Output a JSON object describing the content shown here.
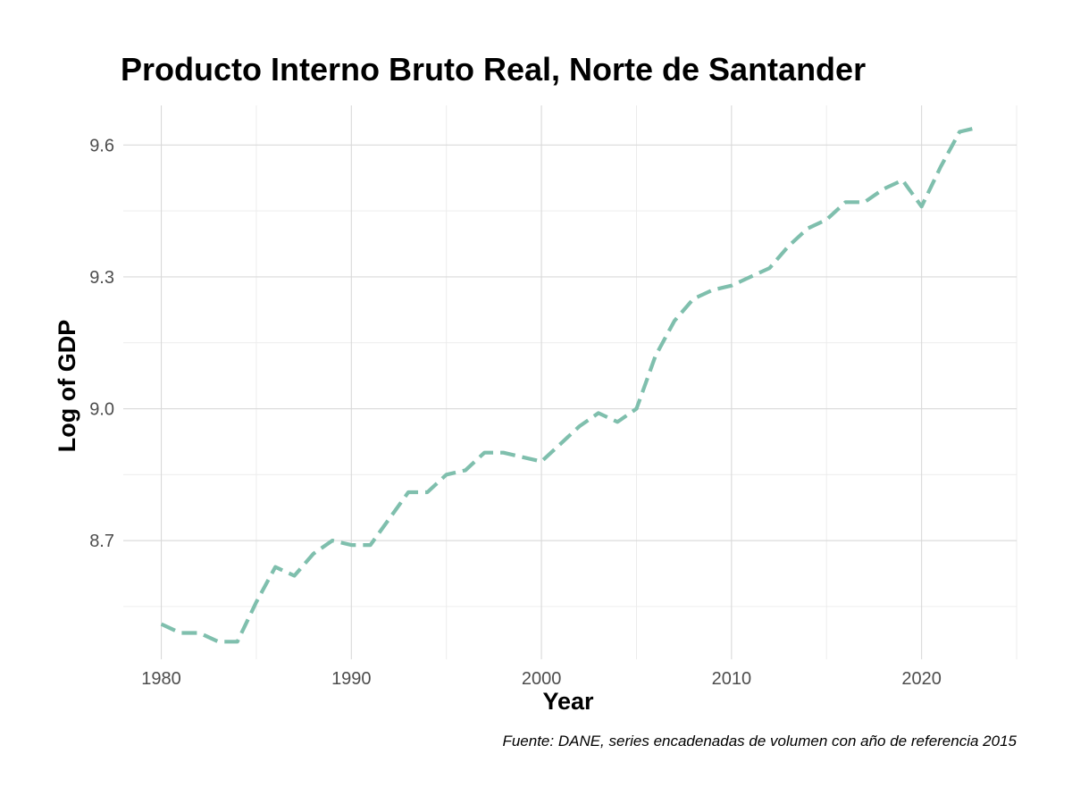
{
  "chart_data": {
    "type": "line",
    "title": "Producto Interno Bruto Real, Norte de Santander",
    "xlabel": "Year",
    "ylabel": "Log of GDP",
    "caption": "Fuente: DANE, series encadenadas de volumen con año de referencia 2015",
    "xlim": [
      1978,
      2025
    ],
    "ylim": [
      8.43,
      9.69
    ],
    "x_ticks": [
      1980,
      1990,
      2000,
      2010,
      2020
    ],
    "y_ticks": [
      8.7,
      9.0,
      9.3,
      9.6
    ],
    "y_tick_labels": [
      "8.7",
      "9.0",
      "9.3",
      "9.6"
    ],
    "grid": true,
    "line_style": "dashed",
    "colors": {
      "line": "#7fbfad",
      "grid_major": "#d9d9d9",
      "grid_minor": "#ebebeb"
    },
    "series": [
      {
        "x": [
          1980,
          1981,
          1982,
          1983,
          1984,
          1985,
          1986,
          1987,
          1988,
          1989,
          1990,
          1991,
          1992,
          1993,
          1994,
          1995,
          1996,
          1997,
          1998,
          1999,
          2000,
          2001,
          2002,
          2003,
          2004,
          2005,
          2006,
          2007,
          2008,
          2009,
          2010,
          2011,
          2012,
          2013,
          2014,
          2015,
          2016,
          2017,
          2018,
          2019,
          2020,
          2021,
          2022,
          2023
        ],
        "y": [
          8.51,
          8.49,
          8.49,
          8.47,
          8.47,
          8.56,
          8.64,
          8.62,
          8.67,
          8.7,
          8.69,
          8.69,
          8.75,
          8.81,
          8.81,
          8.85,
          8.86,
          8.9,
          8.9,
          8.89,
          8.88,
          8.92,
          8.96,
          8.99,
          8.97,
          9.0,
          9.12,
          9.2,
          9.25,
          9.27,
          9.28,
          9.3,
          9.32,
          9.37,
          9.41,
          9.43,
          9.47,
          9.47,
          9.5,
          9.52,
          9.46,
          9.55,
          9.63,
          9.64
        ]
      }
    ]
  }
}
